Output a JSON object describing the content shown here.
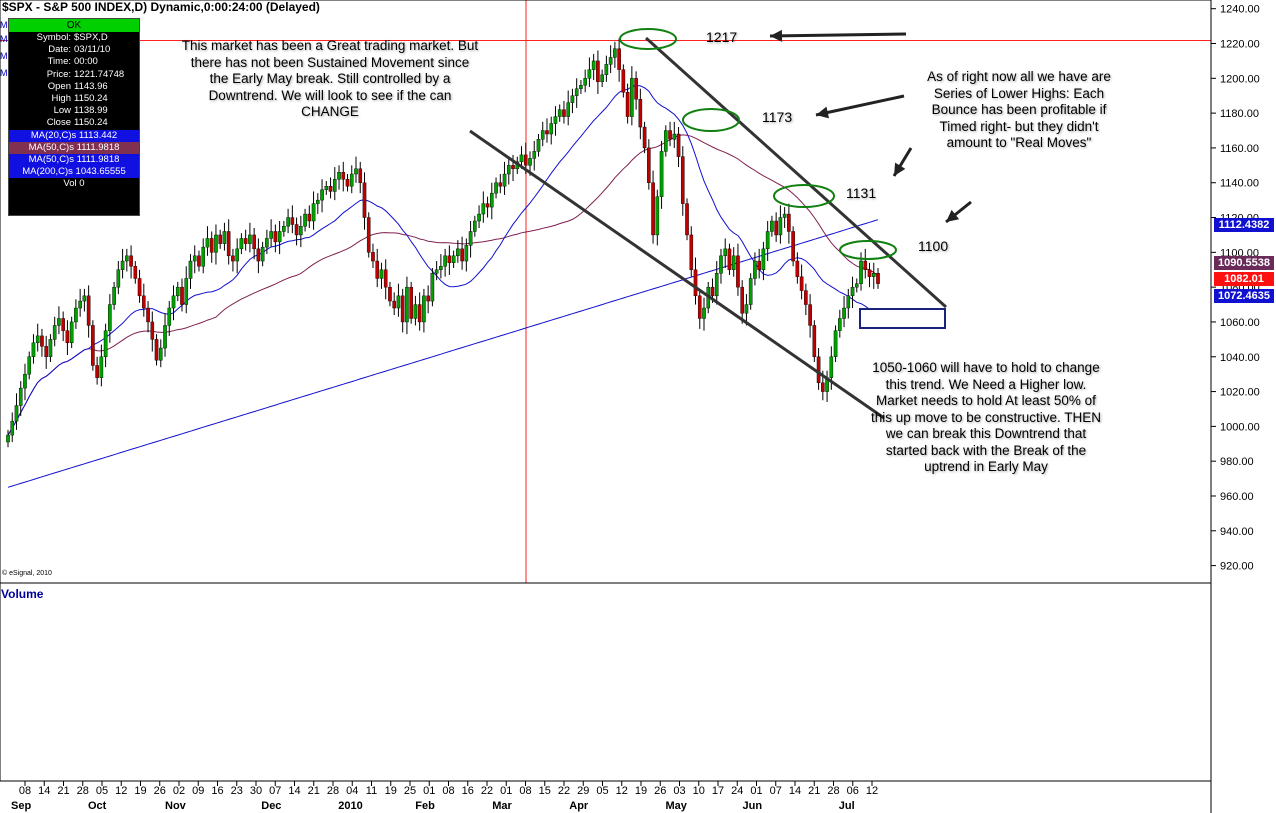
{
  "title": "$SPX - S&P 500 INDEX,D) Dynamic,0:00:24:00 (Delayed)",
  "side_markers": [
    "M",
    "M",
    "M",
    "M"
  ],
  "info_panel": {
    "status": "OK",
    "rows": [
      {
        "k": "Symbol:",
        "v": "$SPX,D"
      },
      {
        "k": "Date:",
        "v": "03/11/10"
      },
      {
        "k": "Time:",
        "v": "00:00"
      },
      {
        "k": "Price:",
        "v": "1221.74748"
      },
      {
        "k": "Open",
        "v": "1143.96"
      },
      {
        "k": "High",
        "v": "1150.24"
      },
      {
        "k": "Low",
        "v": "1138.99"
      },
      {
        "k": "Close",
        "v": "1150.24"
      }
    ],
    "ma_rows": [
      {
        "text": "MA(20,C)s 1113.442",
        "color": "#1010e0"
      },
      {
        "text": "MA(50,C)s 1111.9818",
        "color": "#803050"
      },
      {
        "text": "MA(50,C)s 1111.9818",
        "color": "#1010e0"
      },
      {
        "text": "MA(200,C)s 1043.65555",
        "color": "#1010e0"
      }
    ],
    "vol": "Vol 0"
  },
  "annotations": {
    "note_top": "This market has been a Great trading market.  But there has not been Sustained Movement since the Early May break.  Still controlled by a Downtrend.  We will look to see if the can CHANGE",
    "note_right": "As of right now all we have are Series of Lower Highs:  Each Bounce has been profitable if Timed right- but they didn't amount to \"Real Moves\"",
    "note_bottom": "1050-1060 will have to hold to change this trend.  We Need a Higher low.  Market needs to hold At least 50% of this up move to be constructive.  THEN we can break this Downtrend that started back with the Break of the uptrend in Early May",
    "level_1217": "1217",
    "level_1173": "1173",
    "level_1131": "1131",
    "level_1100": "1100"
  },
  "price_tags": [
    {
      "value": "1112.4382",
      "color": "#1010d0",
      "y": 1112.4382
    },
    {
      "value": "1090.5538",
      "color": "#6a2a5a",
      "y": 1090.5538
    },
    {
      "value": "1082.01",
      "color": "#ff1010",
      "y": 1082.01
    },
    {
      "value": "1072.4635",
      "color": "#1010d0",
      "y": 1072.4635
    }
  ],
  "volume_label": "Volume",
  "copyright": "© eSignal, 2010",
  "chart_data": {
    "type": "candlestick",
    "title": "$SPX - S&P 500 INDEX,D) Dynamic,0:00:24:00 (Delayed)",
    "ylim": [
      910,
      1245
    ],
    "y_ticks": [
      920,
      940,
      960,
      980,
      1000,
      1020,
      1040,
      1060,
      1080,
      1100,
      1120,
      1140,
      1160,
      1180,
      1200,
      1220,
      1240
    ],
    "x_day_ticks": [
      "08",
      "14",
      "21",
      "28",
      "05",
      "12",
      "19",
      "26",
      "02",
      "09",
      "16",
      "23",
      "30",
      "07",
      "14",
      "21",
      "28",
      "04",
      "11",
      "19",
      "25",
      "01",
      "08",
      "16",
      "22",
      "01",
      "08",
      "15",
      "22",
      "29",
      "05",
      "12",
      "19",
      "26",
      "03",
      "10",
      "17",
      "24",
      "01",
      "07",
      "14",
      "21",
      "28",
      "06",
      "12"
    ],
    "x_month_labels": [
      "Sep",
      "Oct",
      "Nov",
      "Dec",
      "2010",
      "Feb",
      "Mar",
      "Apr",
      "May",
      "Jun",
      "Jul"
    ],
    "horizontal_line": 1221.74748,
    "vertical_line_label": "03/11/10",
    "close_series": [
      995,
      1003,
      1012,
      1022,
      1030,
      1040,
      1048,
      1052,
      1046,
      1040,
      1050,
      1058,
      1062,
      1055,
      1048,
      1060,
      1068,
      1072,
      1075,
      1058,
      1035,
      1028,
      1040,
      1055,
      1070,
      1080,
      1090,
      1095,
      1098,
      1092,
      1085,
      1075,
      1068,
      1060,
      1050,
      1038,
      1045,
      1058,
      1068,
      1075,
      1080,
      1070,
      1085,
      1095,
      1098,
      1092,
      1103,
      1108,
      1100,
      1110,
      1105,
      1112,
      1098,
      1095,
      1102,
      1108,
      1105,
      1110,
      1102,
      1095,
      1103,
      1108,
      1112,
      1106,
      1112,
      1115,
      1120,
      1116,
      1110,
      1115,
      1122,
      1118,
      1128,
      1130,
      1136,
      1138,
      1135,
      1142,
      1146,
      1142,
      1138,
      1145,
      1148,
      1140,
      1120,
      1100,
      1095,
      1085,
      1090,
      1080,
      1072,
      1068,
      1075,
      1060,
      1080,
      1062,
      1070,
      1060,
      1075,
      1072,
      1088,
      1090,
      1092,
      1098,
      1094,
      1098,
      1102,
      1095,
      1104,
      1112,
      1118,
      1122,
      1128,
      1126,
      1134,
      1140,
      1138,
      1145,
      1150,
      1148,
      1152,
      1156,
      1150,
      1154,
      1158,
      1165,
      1170,
      1168,
      1174,
      1178,
      1182,
      1178,
      1186,
      1190,
      1194,
      1196,
      1200,
      1205,
      1210,
      1198,
      1202,
      1208,
      1212,
      1217,
      1205,
      1192,
      1178,
      1200,
      1188,
      1172,
      1160,
      1140,
      1110,
      1132,
      1158,
      1170,
      1165,
      1168,
      1155,
      1128,
      1110,
      1090,
      1075,
      1062,
      1068,
      1080,
      1075,
      1088,
      1098,
      1102,
      1090,
      1098,
      1080,
      1065,
      1070,
      1085,
      1095,
      1090,
      1102,
      1112,
      1118,
      1110,
      1120,
      1122,
      1112,
      1095,
      1086,
      1078,
      1070,
      1058,
      1040,
      1025,
      1020,
      1028,
      1040,
      1055,
      1062,
      1068,
      1075,
      1080,
      1082,
      1095,
      1090,
      1086,
      1088,
      1082
    ],
    "ma20_label": "MA(20,C)s 1113.442",
    "ma50_label": "MA(50,C)s 1111.9818",
    "ma200_label": "MA(200,C)s 1043.65555"
  }
}
